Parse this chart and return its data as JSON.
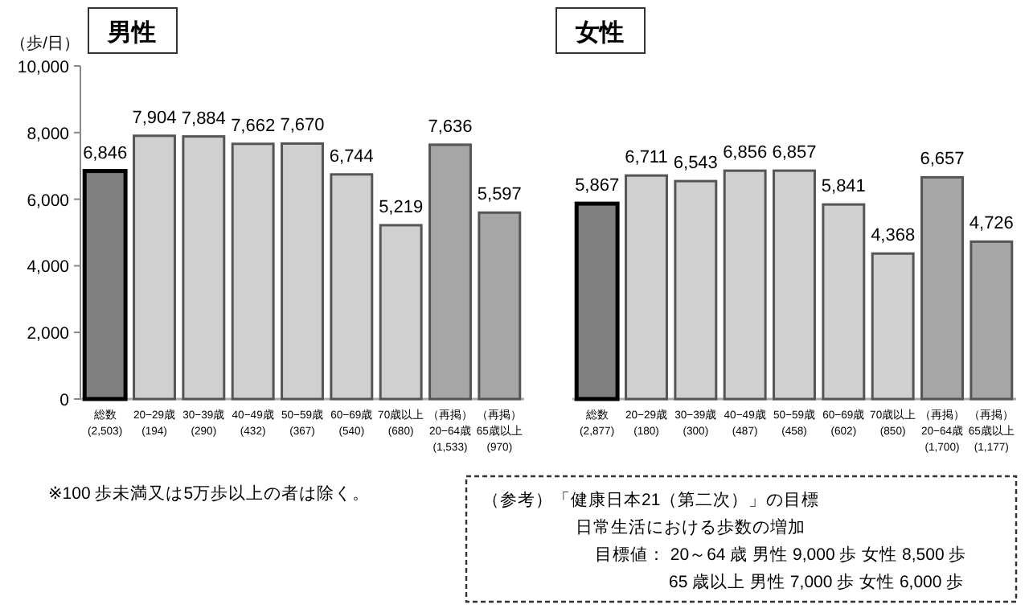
{
  "chart_data": [
    {
      "type": "bar",
      "title": "男性",
      "ylabel": "（歩/日）",
      "categories": [
        "総数\n(2,503)",
        "20−29歳\n(194)",
        "30−39歳\n(290)",
        "40−49歳\n(432)",
        "50−59歳\n(367)",
        "60−69歳\n(540)",
        "70歳以上\n(680)",
        "（再掲）\n20−64歳\n(1,533)",
        "（再掲）\n65歳以上\n(970)"
      ],
      "values": [
        6846,
        7904,
        7884,
        7662,
        7670,
        6744,
        5219,
        7636,
        5597
      ],
      "colors": [
        "#808080",
        "#d0d0d0",
        "#d0d0d0",
        "#d0d0d0",
        "#d0d0d0",
        "#d0d0d0",
        "#d0d0d0",
        "#a6a6a6",
        "#a6a6a6"
      ],
      "ylim": [
        0,
        10000
      ],
      "yticks": [
        {
          "value": 0,
          "label": "0"
        },
        {
          "value": 2000,
          "label": "2,000"
        },
        {
          "value": 4000,
          "label": "4,000"
        },
        {
          "value": 6000,
          "label": "6,000"
        },
        {
          "value": 8000,
          "label": "8,000"
        },
        {
          "value": 10000,
          "label": "10,000"
        }
      ],
      "value_labels": [
        "6,846",
        "7,904",
        "7,884",
        "7,662",
        "7,670",
        "6,744",
        "5,219",
        "7,636",
        "5,597"
      ],
      "annotations": [
        "※100 歩未満又は5万歩以上の者は除く。"
      ]
    },
    {
      "type": "bar",
      "title": "女性",
      "categories": [
        "総数\n(2,877)",
        "20−29歳\n(180)",
        "30−39歳\n(300)",
        "40−49歳\n(487)",
        "50−59歳\n(458)",
        "60−69歳\n(602)",
        "70歳以上\n(850)",
        "（再掲）\n20−64歳\n(1,700)",
        "（再掲）\n65歳以上\n(1,177)"
      ],
      "values": [
        5867,
        6711,
        6543,
        6856,
        6857,
        5841,
        4368,
        6657,
        4726
      ],
      "colors": [
        "#808080",
        "#d0d0d0",
        "#d0d0d0",
        "#d0d0d0",
        "#d0d0d0",
        "#d0d0d0",
        "#d0d0d0",
        "#a6a6a6",
        "#a6a6a6"
      ],
      "ylim": [
        0,
        10000
      ],
      "tick_labels": "x",
      "value_labels": [
        "5,867",
        "6,711",
        "6,543",
        "6,856",
        "6,857",
        "5,841",
        "4,368",
        "6,657",
        "4,726"
      ],
      "annotations": [
        "（参考）「健康日本21（第二次）」の目標",
        "日常生活における歩数の増加",
        "目標値：  20～64 歳  男性 9,000 歩  女性 8,500 歩",
        "65 歳以上  男性 7,000 歩  女性 6,000 歩"
      ]
    }
  ]
}
